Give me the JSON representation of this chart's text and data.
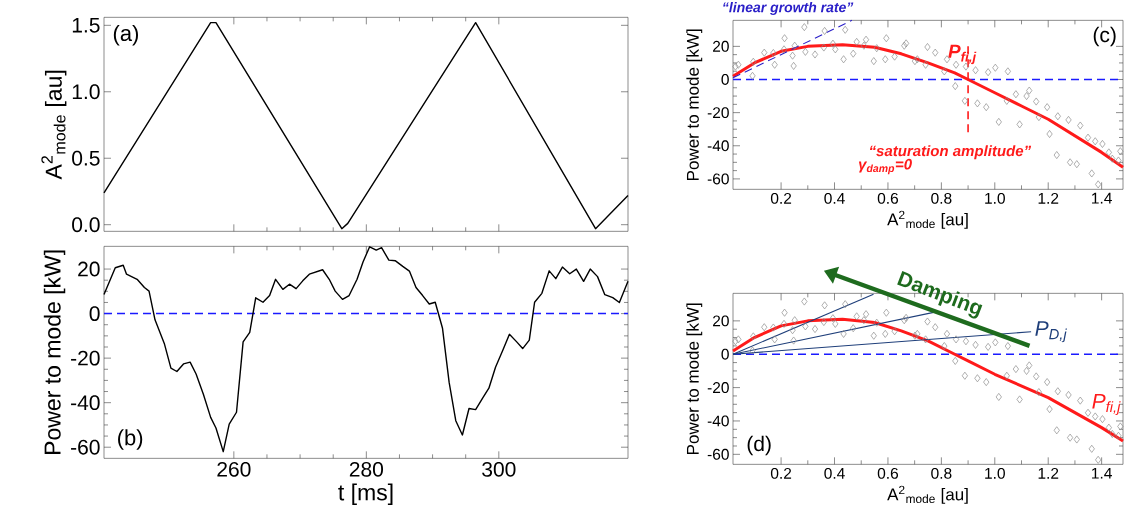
{
  "chart_data": [
    {
      "type": "line",
      "ylabel": "A$^{2}$$_{mode}$ [au]",
      "xlim": [
        240.4,
        319.5
      ],
      "ylim": [
        -0.05,
        1.56
      ],
      "xticks": [
        260,
        280,
        300
      ],
      "yticks": [
        {
          "value": 0,
          "label": "0.0"
        },
        {
          "value": 0.5,
          "label": "0.5"
        },
        {
          "value": 1,
          "label": "1.0"
        },
        {
          "value": 1.5,
          "label": "1.5"
        }
      ],
      "tick_labels": "y",
      "annotations": [
        "(a)"
      ],
      "series": [
        {
          "color": "#000000",
          "x": [
            240.4,
            256.5,
            257.3,
            276.3,
            277.2,
            296.5,
            314.6,
            319.5
          ],
          "values": [
            0.24,
            1.52,
            1.52,
            -0.03,
            0.01,
            1.52,
            -0.03,
            0.22
          ]
        }
      ]
    },
    {
      "type": "line",
      "xlabel": "t [ms]",
      "ylabel": "Power to mode [kW]",
      "xlim": [
        240.4,
        319.5
      ],
      "ylim": [
        -65,
        30.2
      ],
      "xticks": [
        260,
        280,
        300
      ],
      "yticks": [
        20,
        0,
        -20,
        -40,
        -60
      ],
      "annotations": [
        "(b)"
      ],
      "ref_lines": [
        {
          "axis": "y",
          "value": 0,
          "color": "#1a1aff",
          "line_style": "dashed"
        }
      ],
      "series": [
        {
          "color": "#000000",
          "x": [
            240.4,
            242.1,
            243.3,
            243.8,
            245.4,
            246.5,
            247.2,
            248.1,
            249.5,
            250.5,
            251.4,
            252.4,
            253.4,
            254.3,
            255.4,
            256.5,
            257.3,
            258.4,
            259.3,
            260.4,
            261.4,
            262.4,
            263.3,
            264.4,
            265.4,
            266.3,
            267.4,
            268.4,
            269.4,
            270.4,
            271.4,
            273.4,
            274.4,
            275.3,
            276.4,
            277.4,
            278.6,
            279.5,
            280.5,
            281.5,
            282.3,
            283.4,
            284.4,
            285.5,
            286.5,
            287.5,
            288.5,
            289.5,
            290.4,
            291.5,
            292.5,
            293.5,
            294.5,
            295.5,
            296.5,
            297.6,
            298.5,
            299.5,
            300.6,
            301.6,
            302.7,
            303.6,
            304.6,
            305.4,
            306.5,
            307.6,
            308.6,
            309.6,
            310.7,
            311.7,
            312.8,
            313.8,
            314.9,
            316,
            317.2,
            318.2,
            319.5
          ],
          "values": [
            8.6,
            20.6,
            21.7,
            17.7,
            15.4,
            11.7,
            10.1,
            -2.8,
            -13.4,
            -24.5,
            -26,
            -22.6,
            -21.8,
            -27.1,
            -36.2,
            -46.6,
            -51.4,
            -62,
            -49.6,
            -44.3,
            -12.7,
            -8.4,
            7.1,
            5.1,
            8.1,
            15.4,
            10.9,
            13.2,
            11.2,
            14.7,
            17.7,
            19.7,
            15.4,
            10.1,
            6.4,
            8.1,
            15.4,
            23.2,
            30,
            28.5,
            29.6,
            24,
            23.7,
            21.2,
            19.1,
            11.7,
            8.1,
            4.3,
            5.1,
            -6.6,
            -30.9,
            -48.1,
            -54.5,
            -42.6,
            -43.1,
            -37.7,
            -33.5,
            -24.1,
            -16.5,
            -9.3,
            -12.7,
            -15.7,
            -11.9,
            5.1,
            9.1,
            19.2,
            15.7,
            20.9,
            17.9,
            20,
            14.5,
            20,
            16.6,
            8.5,
            7.2,
            5,
            14.5
          ]
        }
      ]
    },
    {
      "type": "scatter",
      "xlabel": "A$^{2}$$_{mode}$ [au]",
      "ylabel": "Power to mode [kW]",
      "xlim": [
        0.02,
        1.48
      ],
      "ylim": [
        -66.3,
        35.7
      ],
      "xticks": [
        0.2,
        0.4,
        0.6,
        0.8,
        {
          "value": 1,
          "label": "1.0"
        },
        1.2,
        1.4
      ],
      "yticks": [
        20,
        0,
        -20,
        -40,
        -60
      ],
      "annotations": [
        "(c)",
        "“linear growth rate”",
        "“saturation amplitude”",
        "γ$_{damp}$=0"
      ],
      "ref_lines": [
        {
          "axis": "y",
          "value": 0,
          "color": "#1a1aff",
          "line_style": "dashed"
        }
      ],
      "series": [
        {
          "type": "scatter",
          "marker": "diamond",
          "color": "#8c8c8c",
          "x": [
            0.029,
            0.04,
            0.093,
            0.096,
            0.137,
            0.171,
            0.176,
            0.211,
            0.213,
            0.243,
            0.247,
            0.251,
            0.287,
            0.291,
            0.327,
            0.36,
            0.363,
            0.394,
            0.403,
            0.434,
            0.44,
            0.47,
            0.483,
            0.51,
            0.518,
            0.547,
            0.558,
            0.59,
            0.594,
            0.625,
            0.661,
            0.668,
            0.701,
            0.71,
            0.741,
            0.748,
            0.777,
            0.811,
            0.821,
            0.852,
            0.855,
            0.888,
            0.892,
            0.928,
            0.935,
            0.968,
            0.975,
            1.002,
            1.015,
            1.045,
            1.049,
            1.079,
            1.093,
            1.119,
            1.129,
            1.155,
            1.165,
            1.196,
            1.205,
            1.232,
            1.236,
            1.276,
            1.282,
            1.307,
            1.32,
            1.349,
            1.363,
            1.376,
            1.387,
            1.403,
            1.427,
            1.44,
            1.463,
            1.47
          ],
          "values": [
            7.8,
            8.9,
            2.2,
            10.7,
            16.2,
            16,
            8.9,
            18.2,
            24.9,
            14.4,
            8.2,
            20.4,
            31.6,
            16.7,
            15.1,
            19.3,
            29.3,
            21.6,
            18.2,
            12.2,
            30,
            15.6,
            22.7,
            20.4,
            24,
            11.1,
            18.9,
            12.2,
            24.9,
            13.8,
            20.4,
            21.8,
            11.1,
            12.2,
            8.9,
            19.6,
            16.2,
            4.9,
            12.2,
            -4,
            8.9,
            -12.9,
            7.8,
            5.6,
            -14.4,
            -16.7,
            4.4,
            7.1,
            -25.6,
            -12.9,
            4.9,
            -8.9,
            -27.1,
            -10,
            -6.7,
            -13.3,
            -22.7,
            -16.7,
            -32.9,
            -45.6,
            -22.2,
            -24.4,
            -50,
            -51.1,
            -27.8,
            -35.1,
            -56.7,
            -37.3,
            -63.3,
            -38.9,
            -44,
            -47.8,
            -48.9,
            -43.3
          ]
        },
        {
          "type": "line",
          "name": "P$_{fi,j}$",
          "color": "#ff1a1a",
          "x": [
            0.02,
            0.1,
            0.2,
            0.3,
            0.43,
            0.55,
            0.65,
            0.75,
            0.85,
            0.9,
            1.0,
            1.1,
            1.2,
            1.3,
            1.4,
            1.48
          ],
          "values": [
            2,
            10,
            17,
            20,
            21,
            19.5,
            15.5,
            10,
            4,
            0,
            -8,
            -16,
            -24,
            -34,
            -44,
            -53
          ]
        },
        {
          "type": "line",
          "line_style": "dashed",
          "color": "#2b20c8",
          "x": [
            0.02,
            0.465
          ],
          "values": [
            1,
            35.7
          ]
        },
        {
          "type": "line",
          "line_style": "dashed",
          "color": "#ff1a1a",
          "x": [
            0.9,
            0.9
          ],
          "values": [
            20,
            -33
          ]
        }
      ]
    },
    {
      "type": "scatter",
      "xlabel": "A$^{2}$$_{mode}$ [au]",
      "ylabel": "Power to mode [kW]",
      "xlim": [
        0.02,
        1.48
      ],
      "ylim": [
        -66,
        36.5
      ],
      "xticks": [
        0.2,
        0.4,
        0.6,
        0.8,
        {
          "value": 1,
          "label": "1.0"
        },
        1.2,
        1.4
      ],
      "yticks": [
        20,
        0,
        -20,
        -40,
        -60
      ],
      "annotations": [
        "(d)",
        "Damping"
      ],
      "ref_lines": [
        {
          "axis": "y",
          "value": 0,
          "color": "#1a1aff",
          "line_style": "dashed"
        }
      ],
      "series": [
        {
          "type": "scatter",
          "marker": "diamond",
          "color": "#8c8c8c",
          "x": [
            0.029,
            0.04,
            0.093,
            0.096,
            0.137,
            0.171,
            0.176,
            0.211,
            0.213,
            0.243,
            0.247,
            0.251,
            0.287,
            0.291,
            0.327,
            0.36,
            0.363,
            0.394,
            0.403,
            0.434,
            0.44,
            0.47,
            0.483,
            0.51,
            0.518,
            0.547,
            0.558,
            0.59,
            0.594,
            0.625,
            0.661,
            0.668,
            0.701,
            0.71,
            0.741,
            0.748,
            0.777,
            0.811,
            0.821,
            0.852,
            0.855,
            0.888,
            0.892,
            0.928,
            0.935,
            0.968,
            0.975,
            1.002,
            1.015,
            1.045,
            1.049,
            1.079,
            1.093,
            1.119,
            1.129,
            1.155,
            1.165,
            1.196,
            1.205,
            1.232,
            1.236,
            1.276,
            1.282,
            1.307,
            1.32,
            1.349,
            1.363,
            1.376,
            1.387,
            1.403,
            1.427,
            1.44,
            1.463,
            1.47
          ],
          "values": [
            7.8,
            8.9,
            2.2,
            10.7,
            16.2,
            16,
            8.9,
            18.2,
            24.9,
            14.4,
            8.2,
            20.4,
            31.6,
            16.7,
            15.1,
            19.3,
            29.3,
            21.6,
            18.2,
            12.2,
            30,
            15.6,
            22.7,
            20.4,
            24,
            11.1,
            18.9,
            12.2,
            24.9,
            13.8,
            20.4,
            21.8,
            11.1,
            12.2,
            8.9,
            19.6,
            16.2,
            4.9,
            12.2,
            -4,
            8.9,
            -12.9,
            7.8,
            5.6,
            -14.4,
            -16.7,
            4.4,
            7.1,
            -25.6,
            -12.9,
            4.9,
            -8.9,
            -27.1,
            -10,
            -6.7,
            -13.3,
            -22.7,
            -16.7,
            -32.9,
            -45.6,
            -22.2,
            -24.4,
            -50,
            -51.1,
            -27.8,
            -35.1,
            -56.7,
            -37.3,
            -63.3,
            -38.9,
            -44,
            -47.8,
            -48.9,
            -43.3
          ]
        },
        {
          "type": "line",
          "name": "P$_{fi,j}$",
          "color": "#ff1a1a",
          "x": [
            0.02,
            0.1,
            0.2,
            0.3,
            0.43,
            0.55,
            0.65,
            0.75,
            0.85,
            0.9,
            1.0,
            1.1,
            1.2,
            1.3,
            1.4,
            1.48
          ],
          "values": [
            2,
            10,
            17,
            20,
            21,
            19,
            14,
            8,
            0,
            -4,
            -12,
            -19,
            -26,
            -35,
            -44,
            -52
          ]
        },
        {
          "type": "line",
          "color": "#1f3f7a",
          "x": [
            0.02,
            0.546
          ],
          "values": [
            0,
            36
          ]
        },
        {
          "type": "line",
          "color": "#1f3f7a",
          "x": [
            0.02,
            0.78
          ],
          "values": [
            0,
            25.4
          ]
        },
        {
          "type": "line",
          "name": "P$_{D,j}$",
          "color": "#1f3f7a",
          "x": [
            0.02,
            1.136
          ],
          "values": [
            0,
            13.5
          ]
        }
      ]
    }
  ]
}
